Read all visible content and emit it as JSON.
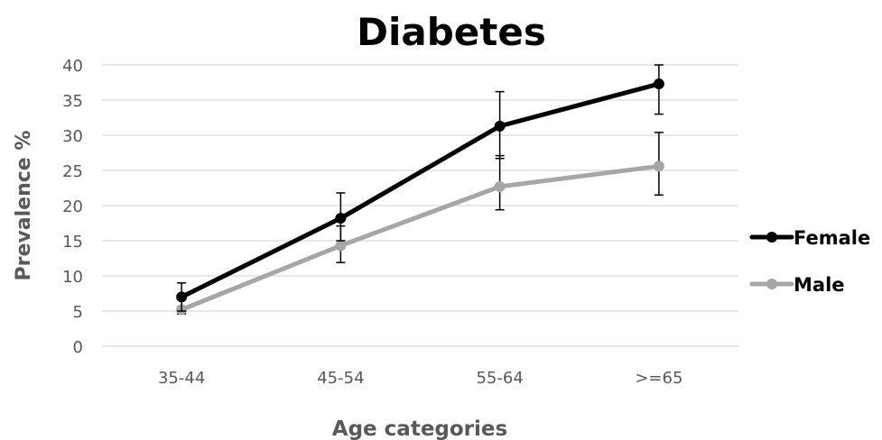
{
  "chart_data": {
    "type": "line",
    "title": "Diabetes",
    "xlabel": "Age categories",
    "ylabel": "Prevalence %",
    "categories": [
      "35-44",
      "45-54",
      "55-64",
      ">=65"
    ],
    "ylim": [
      0,
      40
    ],
    "yticks": [
      0,
      5,
      10,
      15,
      20,
      25,
      30,
      35,
      40
    ],
    "grid": true,
    "legend_position": "right",
    "series": [
      {
        "name": "Female",
        "color": "#000000",
        "values": [
          7.0,
          18.2,
          31.3,
          37.3
        ],
        "error_low": [
          5.0,
          15.0,
          26.7,
          33.0
        ],
        "error_high": [
          9.0,
          21.8,
          36.2,
          40.0
        ]
      },
      {
        "name": "Male",
        "color": "#a6a6a6",
        "values": [
          5.2,
          14.3,
          22.7,
          25.6
        ],
        "error_low": [
          4.6,
          11.9,
          19.4,
          21.5
        ],
        "error_high": [
          5.6,
          17.1,
          27.1,
          30.4
        ]
      }
    ]
  }
}
